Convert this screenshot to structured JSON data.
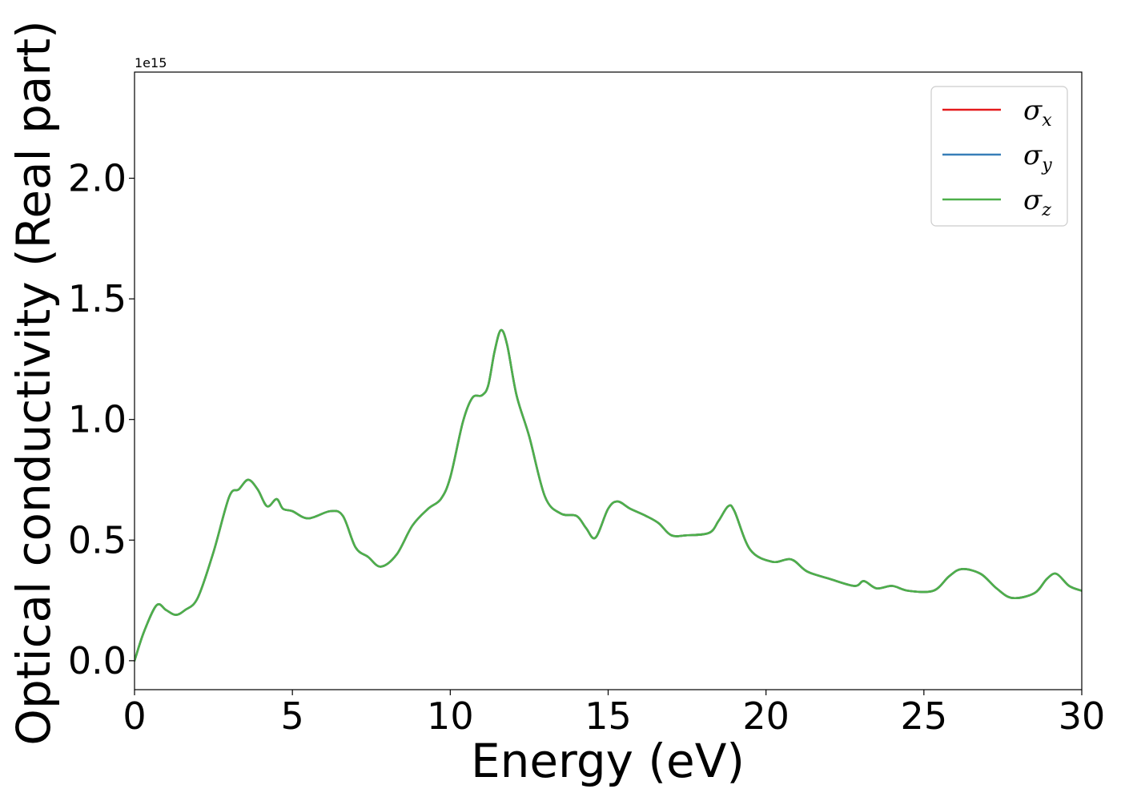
{
  "chart_data": {
    "type": "line",
    "xlabel": "Energy (eV)",
    "ylabel": "Optical conductivity (Real part)",
    "y_offset_text": "1e15",
    "xlim": [
      0,
      30
    ],
    "ylim": [
      -0.12,
      2.44
    ],
    "x_ticks": [
      0,
      5,
      10,
      15,
      20,
      25,
      30
    ],
    "x_tick_labels": [
      "0",
      "5",
      "10",
      "15",
      "20",
      "25",
      "30"
    ],
    "y_ticks": [
      0.0,
      0.5,
      1.0,
      1.5,
      2.0
    ],
    "y_tick_labels": [
      "0.0",
      "0.5",
      "1.0",
      "1.5",
      "2.0"
    ],
    "grid": false,
    "legend_position": "top-right",
    "series": [
      {
        "name": "σx",
        "symbol": "σ",
        "subscript": "x",
        "color": "#e41a1c"
      },
      {
        "name": "σy",
        "symbol": "σ",
        "subscript": "y",
        "color": "#377eb8"
      },
      {
        "name": "σz",
        "symbol": "σ",
        "subscript": "z",
        "color": "#4daf4a"
      }
    ],
    "x": [
      0,
      0.3,
      0.7,
      1.0,
      1.3,
      1.6,
      2.0,
      2.5,
      3.0,
      3.3,
      3.6,
      3.9,
      4.2,
      4.5,
      4.7,
      5.0,
      5.5,
      6.2,
      6.6,
      7.0,
      7.4,
      7.8,
      8.3,
      8.8,
      9.3,
      9.7,
      10.0,
      10.4,
      10.7,
      11.0,
      11.2,
      11.4,
      11.6,
      11.8,
      12.1,
      12.5,
      13.0,
      13.5,
      14.0,
      14.3,
      14.6,
      15.0,
      15.3,
      15.7,
      16.2,
      16.6,
      17.0,
      17.5,
      18.2,
      18.5,
      18.8,
      19.0,
      19.5,
      20.2,
      20.8,
      21.3,
      22.0,
      22.8,
      23.1,
      23.5,
      24.0,
      24.5,
      25.3,
      25.8,
      26.2,
      26.8,
      27.3,
      27.8,
      28.5,
      28.9,
      29.2,
      29.6,
      30.0
    ],
    "y": [
      0.0,
      0.12,
      0.23,
      0.21,
      0.19,
      0.21,
      0.26,
      0.45,
      0.68,
      0.71,
      0.75,
      0.71,
      0.64,
      0.67,
      0.63,
      0.62,
      0.59,
      0.62,
      0.6,
      0.47,
      0.43,
      0.39,
      0.44,
      0.56,
      0.63,
      0.67,
      0.76,
      0.99,
      1.09,
      1.1,
      1.14,
      1.28,
      1.37,
      1.31,
      1.1,
      0.93,
      0.68,
      0.61,
      0.6,
      0.55,
      0.51,
      0.63,
      0.66,
      0.63,
      0.6,
      0.57,
      0.52,
      0.52,
      0.53,
      0.58,
      0.64,
      0.62,
      0.46,
      0.41,
      0.42,
      0.37,
      0.34,
      0.31,
      0.33,
      0.3,
      0.31,
      0.29,
      0.29,
      0.35,
      0.38,
      0.36,
      0.3,
      0.26,
      0.28,
      0.34,
      0.36,
      0.31,
      0.29
    ]
  }
}
